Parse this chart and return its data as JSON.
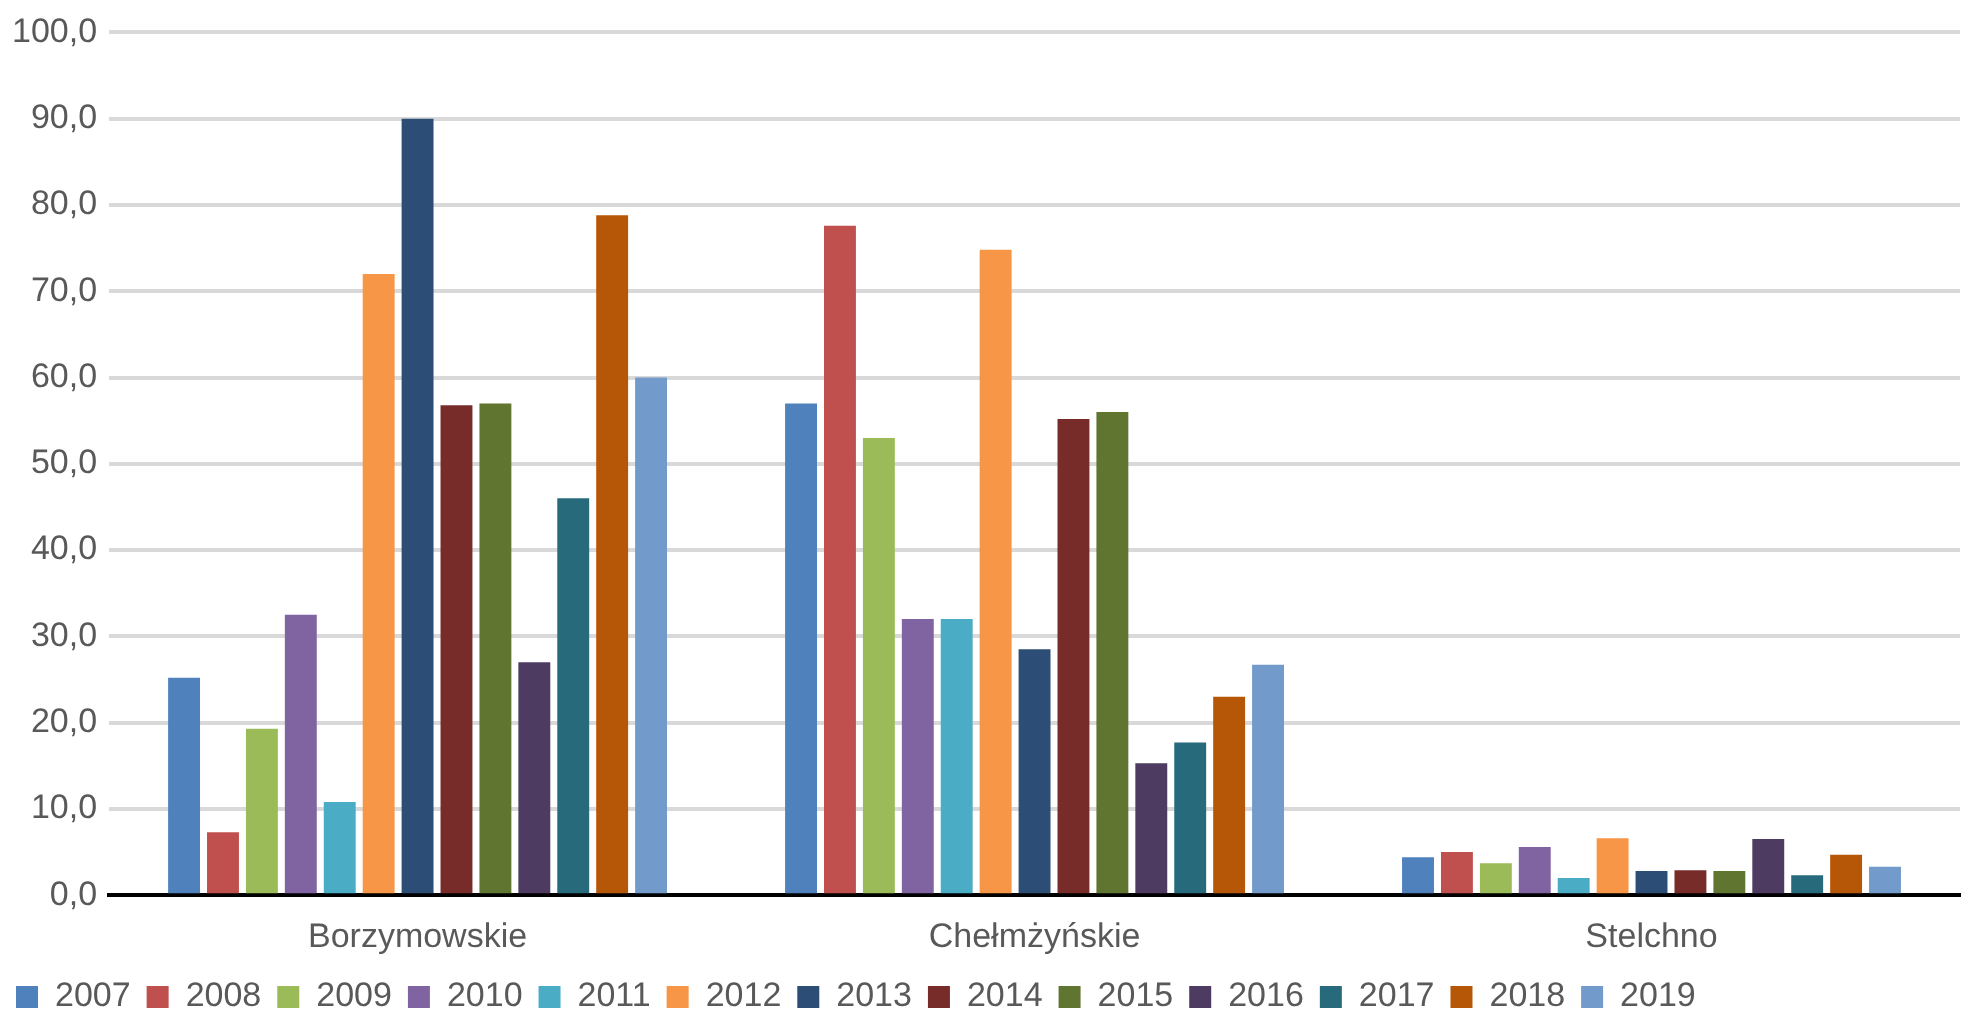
{
  "chart_data": {
    "type": "bar",
    "categories": [
      "Borzymowskie",
      "Chełmżyńskie",
      "Stelchno"
    ],
    "series": [
      {
        "name": "2007",
        "color": "#4f81bd",
        "values": [
          25.2,
          57.0,
          4.4
        ]
      },
      {
        "name": "2008",
        "color": "#c0504d",
        "values": [
          7.3,
          77.6,
          5.0
        ]
      },
      {
        "name": "2009",
        "color": "#9bbb59",
        "values": [
          19.3,
          53.0,
          3.7
        ]
      },
      {
        "name": "2010",
        "color": "#8064a2",
        "values": [
          32.5,
          32.0,
          5.6
        ]
      },
      {
        "name": "2011",
        "color": "#4bacc6",
        "values": [
          10.8,
          32.0,
          2.0
        ]
      },
      {
        "name": "2012",
        "color": "#f79646",
        "values": [
          72.0,
          74.8,
          6.6
        ]
      },
      {
        "name": "2013",
        "color": "#2c4d75",
        "values": [
          90.0,
          28.5,
          2.8
        ]
      },
      {
        "name": "2014",
        "color": "#772c2a",
        "values": [
          56.8,
          55.2,
          2.9
        ]
      },
      {
        "name": "2015",
        "color": "#5f7530",
        "values": [
          57.0,
          56.0,
          2.8
        ]
      },
      {
        "name": "2016",
        "color": "#4d3b62",
        "values": [
          27.0,
          15.3,
          6.5
        ]
      },
      {
        "name": "2017",
        "color": "#276a7c",
        "values": [
          46.0,
          17.7,
          2.3
        ]
      },
      {
        "name": "2018",
        "color": "#b65708",
        "values": [
          78.8,
          23.0,
          4.7
        ]
      },
      {
        "name": "2019",
        "color": "#729aca",
        "values": [
          60.0,
          26.7,
          3.3
        ]
      }
    ],
    "ylim": [
      0,
      100
    ],
    "yticks": [
      {
        "value": 0,
        "label": "0,0"
      },
      {
        "value": 10,
        "label": "10,0"
      },
      {
        "value": 20,
        "label": "20,0"
      },
      {
        "value": 30,
        "label": "30,0"
      },
      {
        "value": 40,
        "label": "40,0"
      },
      {
        "value": 50,
        "label": "50,0"
      },
      {
        "value": 60,
        "label": "60,0"
      },
      {
        "value": 70,
        "label": "70,0"
      },
      {
        "value": 80,
        "label": "80,0"
      },
      {
        "value": 90,
        "label": "90,0"
      },
      {
        "value": 100,
        "label": "100,0"
      }
    ],
    "grid": "y",
    "legend": "bottom"
  }
}
